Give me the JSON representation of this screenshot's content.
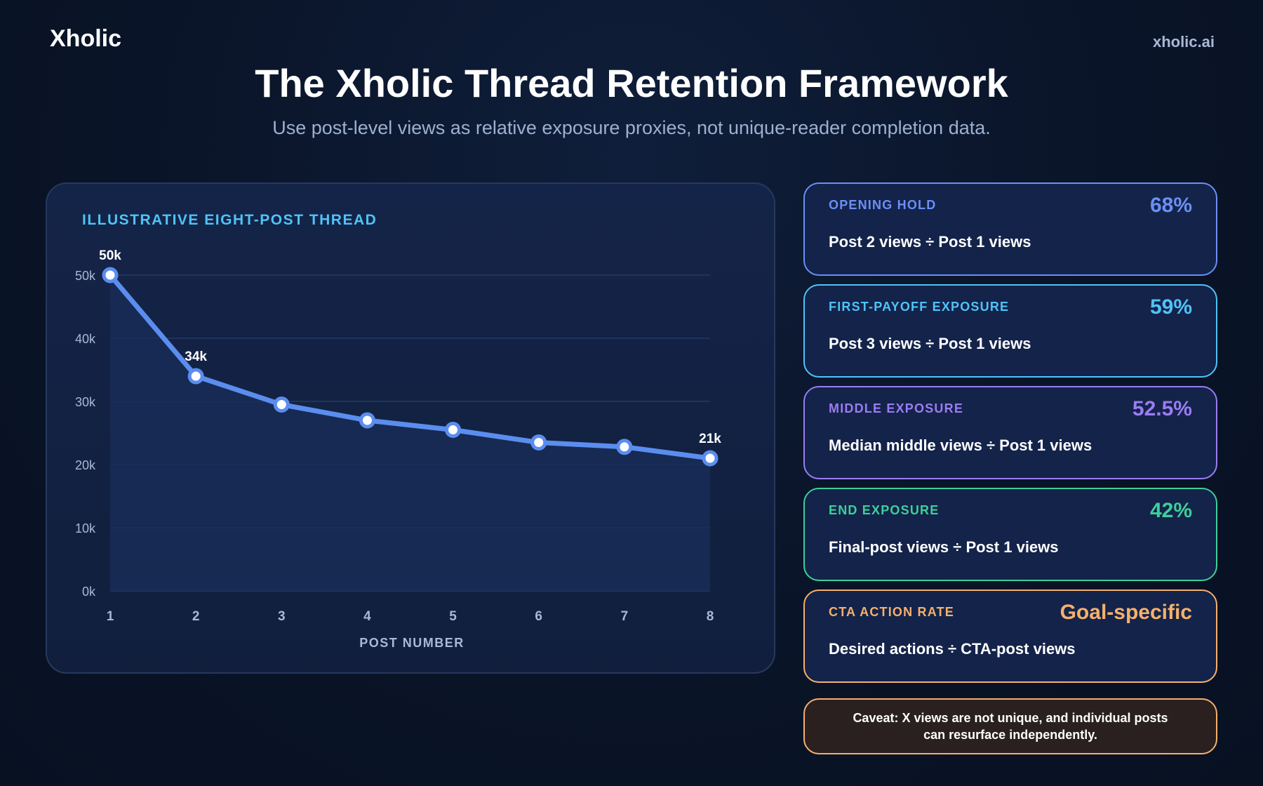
{
  "header": {
    "brand": "Xholic",
    "site": "xholic.ai",
    "title": "The Xholic Thread Retention Framework",
    "subtitle": "Use post-level views as relative exposure proxies, not unique-reader completion data."
  },
  "chart_data": {
    "type": "line",
    "title": "ILLUSTRATIVE EIGHT-POST THREAD",
    "xlabel": "POST NUMBER",
    "ylabel": "",
    "x": [
      1,
      2,
      3,
      4,
      5,
      6,
      7,
      8
    ],
    "series": [
      {
        "values": [
          50000,
          34000,
          29500,
          27000,
          25500,
          23500,
          22800,
          21000
        ]
      }
    ],
    "data_labels": [
      {
        "x": 1,
        "text": "50k"
      },
      {
        "x": 2,
        "text": "34k"
      },
      {
        "x": 8,
        "text": "21k"
      }
    ],
    "y_ticks": [
      0,
      10000,
      20000,
      30000,
      40000,
      50000
    ],
    "y_tick_labels": [
      "0k",
      "10k",
      "20k",
      "30k",
      "40k",
      "50k"
    ],
    "ylim": [
      0,
      50000
    ],
    "xlim": [
      1,
      8
    ],
    "grid": true,
    "area_fill": true,
    "line_color": "#5b8def"
  },
  "metrics": [
    {
      "label": "OPENING HOLD",
      "value": "68%",
      "formula": "Post 2 views ÷ Post 1 views",
      "color": "#6b8ff5"
    },
    {
      "label": "FIRST-PAYOFF EXPOSURE",
      "value": "59%",
      "formula": "Post 3 views ÷ Post 1 views",
      "color": "#4fc3f7"
    },
    {
      "label": "MIDDLE EXPOSURE",
      "value": "52.5%",
      "formula": "Median middle views ÷ Post 1 views",
      "color": "#9b7cf2"
    },
    {
      "label": "END EXPOSURE",
      "value": "42%",
      "formula": "Final-post views ÷ Post 1 views",
      "color": "#3ecf9a"
    },
    {
      "label": "CTA ACTION RATE",
      "value": "Goal-specific",
      "formula": "Desired actions ÷ CTA-post views",
      "color": "#f5b06c"
    }
  ],
  "caveat": "Caveat: X views are not unique, and individual posts can resurface independently."
}
